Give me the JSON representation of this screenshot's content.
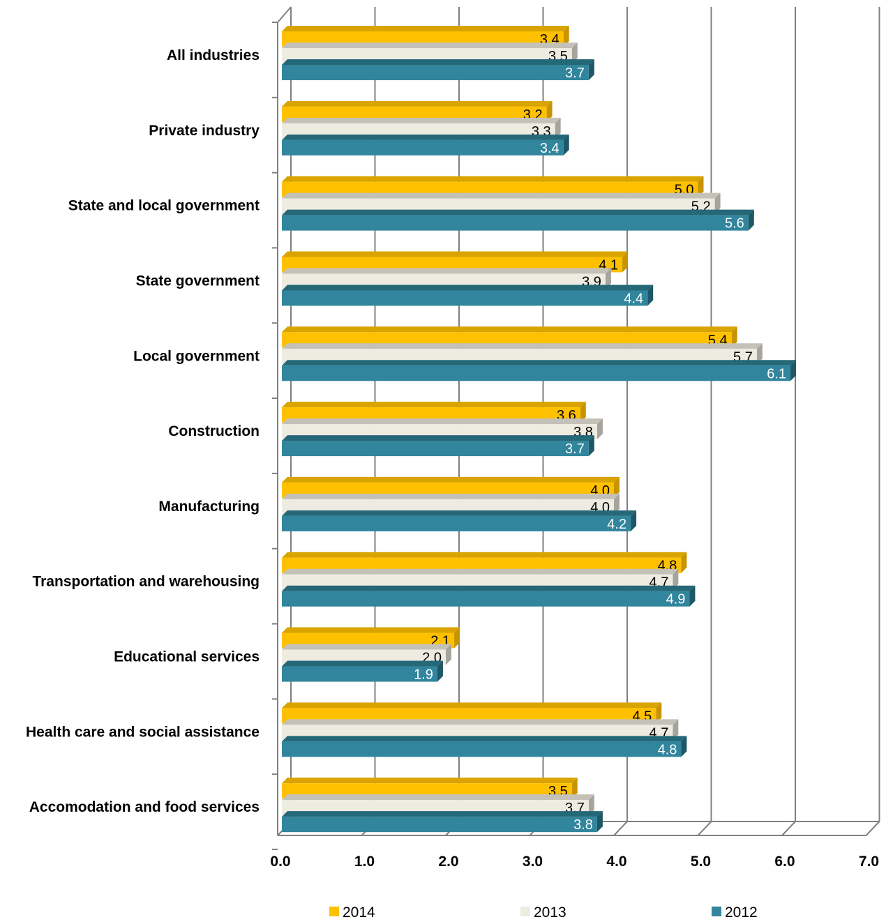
{
  "chart_data": {
    "type": "bar",
    "orientation": "horizontal",
    "categories": [
      "All industries",
      "Private industry",
      "State and local government",
      "State government",
      "Local government",
      "Construction",
      "Manufacturing",
      "Transportation and warehousing",
      "Educational services",
      "Health care and social assistance",
      "Accomodation and food services"
    ],
    "series": [
      {
        "name": "2014",
        "color": "#FFC000",
        "side_color": "#C79400",
        "top_color": "#D9A300",
        "label_color": "#000000",
        "values": [
          3.4,
          3.2,
          5.0,
          4.1,
          5.4,
          3.6,
          4.0,
          4.8,
          2.1,
          4.5,
          3.5
        ],
        "labels": [
          "3.4",
          "3.2",
          "5.0",
          "4.1",
          "5.4",
          "3.6",
          "4.0",
          "4.8",
          "2.1",
          "4.5",
          "3.5"
        ]
      },
      {
        "name": "2013",
        "color": "#EEECE1",
        "side_color": "#A6A59D",
        "top_color": "#C4C2B8",
        "label_color": "#000000",
        "values": [
          3.5,
          3.3,
          5.2,
          3.9,
          5.7,
          3.8,
          4.0,
          4.7,
          2.0,
          4.7,
          3.7
        ],
        "labels": [
          "3.5",
          "3.3",
          "5.2",
          "3.9",
          "5.7",
          "3.8",
          "4.0",
          "4.7",
          "2.0",
          "4.7",
          "3.7"
        ]
      },
      {
        "name": "2012",
        "color": "#31859C",
        "side_color": "#1F5766",
        "top_color": "#256878",
        "label_color": "#FFFFFF",
        "values": [
          3.7,
          3.4,
          5.6,
          4.4,
          6.1,
          3.7,
          4.2,
          4.9,
          1.9,
          4.8,
          3.8
        ],
        "labels": [
          "3.7",
          "3.4",
          "5.6",
          "4.4",
          "6.1",
          "3.7",
          "4.2",
          "4.9",
          "1.9",
          "4.8",
          "3.8"
        ]
      }
    ],
    "xlim": [
      0,
      7
    ],
    "x_ticks": [
      "0.0",
      "1.0",
      "2.0",
      "3.0",
      "4.0",
      "5.0",
      "6.0",
      "7.0"
    ],
    "grid": true,
    "legend_position": "bottom",
    "title": "",
    "xlabel": "",
    "ylabel": ""
  }
}
